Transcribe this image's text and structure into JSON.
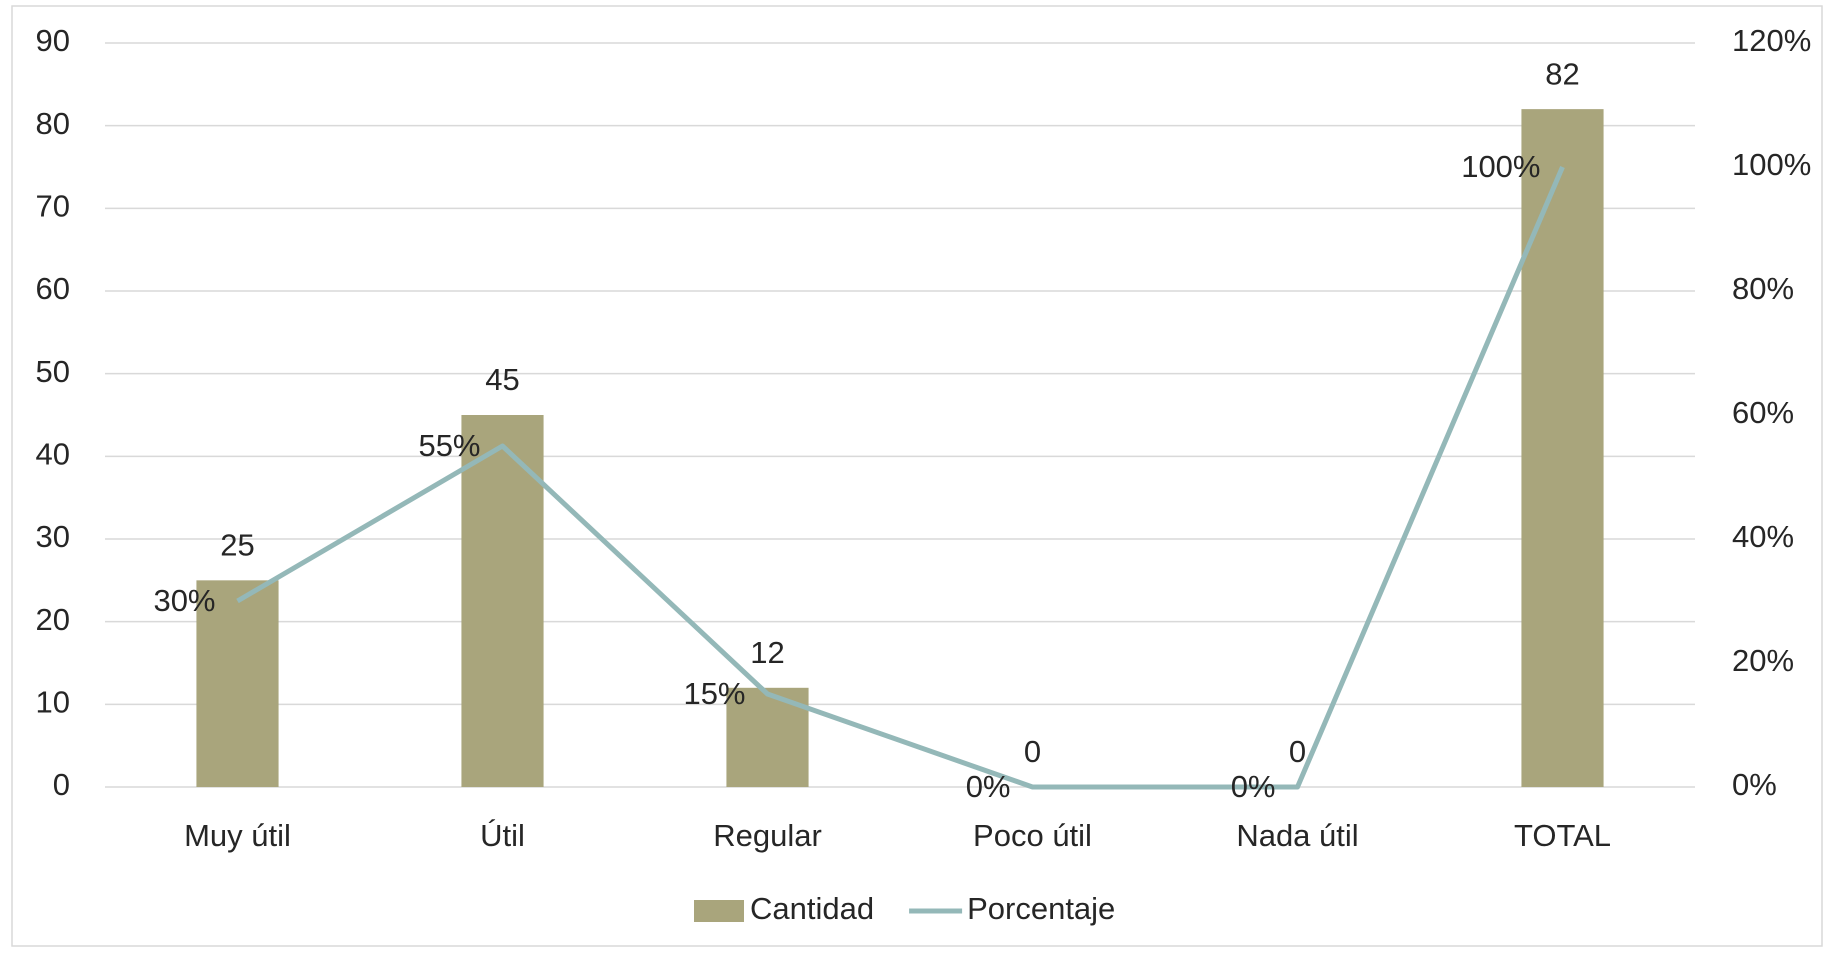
{
  "chart_data": {
    "type": "bar",
    "categories": [
      "Muy útil",
      "Útil",
      "Regular",
      "Poco útil",
      "Nada útil",
      "TOTAL"
    ],
    "series": [
      {
        "name": "Cantidad",
        "type": "bar",
        "color": "#a9a57c",
        "values": [
          25,
          45,
          12,
          0,
          0,
          82
        ]
      },
      {
        "name": "Porcentaje",
        "type": "line",
        "axis": "y2",
        "color": "#94b8b8",
        "values": [
          30,
          55,
          15,
          0,
          0,
          100
        ],
        "value_labels": [
          "30%",
          "55%",
          "15%",
          "0%",
          "0%",
          "100%"
        ]
      }
    ],
    "ylim": [
      0,
      90
    ],
    "yticks": [
      0,
      10,
      20,
      30,
      40,
      50,
      60,
      70,
      80,
      90
    ],
    "y2lim": [
      0,
      120
    ],
    "y2ticks": [
      {
        "value": 0,
        "label": "0%"
      },
      {
        "value": 20,
        "label": "20%"
      },
      {
        "value": 40,
        "label": "40%"
      },
      {
        "value": 60,
        "label": "60%"
      },
      {
        "value": 80,
        "label": "80%"
      },
      {
        "value": 100,
        "label": "100%"
      },
      {
        "value": 120,
        "label": "120%"
      }
    ],
    "grid": true,
    "legend": "bottom"
  }
}
